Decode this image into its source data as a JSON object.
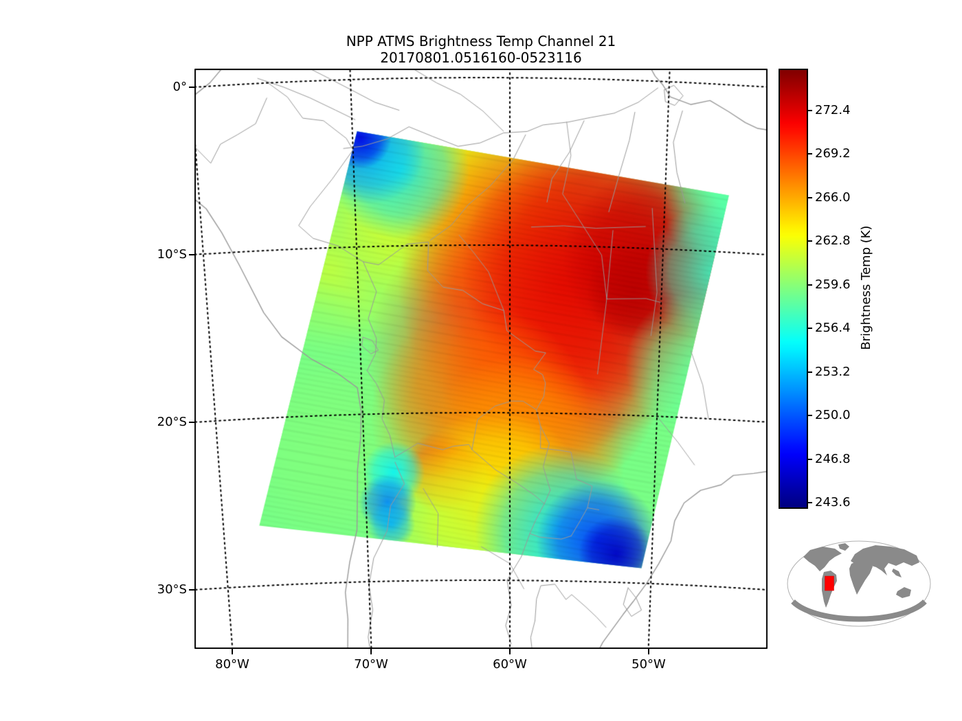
{
  "title": "NPP ATMS Brightness Temp Channel 21",
  "subtitle": "20170801.0516160-0523116",
  "axes": {
    "lat_ticks": [
      {
        "label": "0°",
        "lat": 0
      },
      {
        "label": "10°S",
        "lat": 10
      },
      {
        "label": "20°S",
        "lat": 20
      },
      {
        "label": "30°S",
        "lat": 30
      }
    ],
    "lon_ticks": [
      {
        "label": "80°W",
        "lon": 80
      },
      {
        "label": "70°W",
        "lon": 70
      },
      {
        "label": "60°W",
        "lon": 60
      },
      {
        "label": "50°W",
        "lon": 50
      }
    ]
  },
  "colorbar": {
    "label": "Brightness Temp (K)",
    "tick_values": [
      272.4,
      269.2,
      266.0,
      262.8,
      259.6,
      256.4,
      253.2,
      250.0,
      246.8,
      243.6
    ],
    "range": [
      243.35,
      275.45
    ],
    "colormap": "jet"
  },
  "chart_data": {
    "type": "heatmap",
    "title": "NPP ATMS Brightness Temp Channel 21",
    "subtitle_time_range": "20170801.0516160-0523116",
    "value_label": "Brightness Temp (K)",
    "value_ticks": [
      272.4,
      269.2,
      266.0,
      262.8,
      259.6,
      256.4,
      253.2,
      250.0,
      246.8,
      243.6
    ],
    "value_range_norm": [
      243.35,
      275.45
    ],
    "lat_ticks_deg": [
      0,
      -10,
      -20,
      -30
    ],
    "lon_ticks_deg": [
      -80,
      -70,
      -60,
      -50
    ],
    "grid": "dotted",
    "region": "South America",
    "swath_corners": [
      [
        69.7,
        3.1
      ],
      [
        45.9,
        6.6
      ],
      [
        50.7,
        29.1
      ],
      [
        77.5,
        26.4
      ]
    ],
    "base_temp_k": 259.2,
    "blobs": [
      {
        "lon": 71.7,
        "lat": 11.2,
        "r": 130,
        "t": 262.0,
        "a": 0.75
      },
      {
        "lon": 74.3,
        "lat": 17.3,
        "r": 140,
        "t": 259.2,
        "a": 0.8
      },
      {
        "lon": 71.2,
        "lat": 21.8,
        "r": 150,
        "t": 259.6,
        "a": 0.8
      },
      {
        "lon": 64.8,
        "lat": 5.0,
        "r": 90,
        "t": 261.5,
        "a": 0.8
      },
      {
        "lon": 63.5,
        "lat": 7.1,
        "r": 180,
        "t": 263.5,
        "a": 0.8
      },
      {
        "lon": 58.2,
        "lat": 8.3,
        "r": 210,
        "t": 266.0,
        "a": 0.85
      },
      {
        "lon": 60.4,
        "lat": 16.5,
        "r": 200,
        "t": 268.8,
        "a": 0.85
      },
      {
        "lon": 57.2,
        "lat": 18.2,
        "r": 160,
        "t": 269.5,
        "a": 0.85
      },
      {
        "lon": 56.5,
        "lat": 12.4,
        "r": 240,
        "t": 270.5,
        "a": 0.9
      },
      {
        "lon": 54.2,
        "lat": 11.2,
        "r": 200,
        "t": 272.6,
        "a": 0.88
      },
      {
        "lon": 50.7,
        "lat": 10.6,
        "r": 130,
        "t": 273.3,
        "a": 0.92
      },
      {
        "lon": 51.8,
        "lat": 12.6,
        "r": 70,
        "t": 273.6,
        "a": 0.9
      },
      {
        "lon": 62.0,
        "lat": 20.2,
        "r": 160,
        "t": 267.5,
        "a": 0.8
      },
      {
        "lon": 59.2,
        "lat": 22.7,
        "r": 150,
        "t": 266.5,
        "a": 0.85
      },
      {
        "lon": 64.6,
        "lat": 23.5,
        "r": 60,
        "t": 268.5,
        "a": 0.9
      },
      {
        "lon": 61.0,
        "lat": 25.1,
        "r": 130,
        "t": 263.5,
        "a": 0.8
      },
      {
        "lon": 64.8,
        "lat": 26.8,
        "r": 110,
        "t": 262.0,
        "a": 0.75
      },
      {
        "lon": 46.2,
        "lat": 7.1,
        "r": 90,
        "t": 258.0,
        "a": 0.85
      },
      {
        "lon": 46.6,
        "lat": 11.2,
        "r": 100,
        "t": 257.0,
        "a": 0.85
      },
      {
        "lon": 47.2,
        "lat": 16.9,
        "r": 110,
        "t": 258.5,
        "a": 0.8
      },
      {
        "lon": 68.9,
        "lat": 4.2,
        "r": 80,
        "t": 250.0,
        "a": 0.9
      },
      {
        "lon": 67.0,
        "lat": 5.5,
        "r": 100,
        "t": 254.5,
        "a": 0.8
      },
      {
        "lon": 69.5,
        "lat": 3.5,
        "r": 45,
        "t": 246.5,
        "a": 0.9
      },
      {
        "lon": 56.7,
        "lat": 26.8,
        "r": 120,
        "t": 254.5,
        "a": 0.85
      },
      {
        "lon": 53.8,
        "lat": 27.6,
        "r": 90,
        "t": 249.0,
        "a": 0.9
      },
      {
        "lon": 52.5,
        "lat": 28.3,
        "r": 55,
        "t": 245.5,
        "a": 0.92
      },
      {
        "lon": 68.0,
        "lat": 23.5,
        "r": 45,
        "t": 255.0,
        "a": 0.85
      },
      {
        "lon": 68.5,
        "lat": 25.3,
        "r": 42,
        "t": 251.5,
        "a": 0.9
      },
      {
        "lon": 68.3,
        "lat": 26.6,
        "r": 35,
        "t": 253.0,
        "a": 0.85
      }
    ]
  },
  "inset": {
    "highlight_color": "#ff0000",
    "land_color": "#8a8a8a"
  }
}
